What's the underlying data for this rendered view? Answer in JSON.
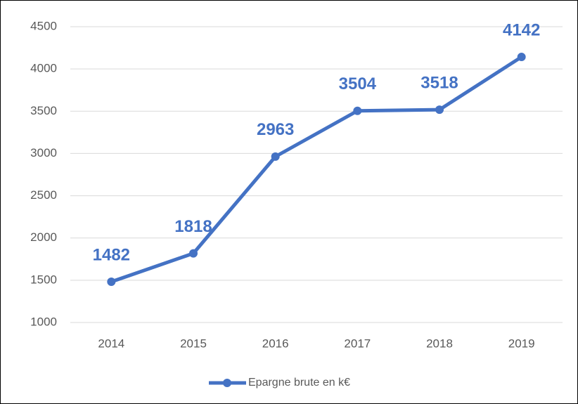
{
  "chart_data": {
    "type": "line",
    "categories": [
      "2014",
      "2015",
      "2016",
      "2017",
      "2018",
      "2019"
    ],
    "series": [
      {
        "name": "Epargne brute en k€",
        "color": "#4472c4",
        "values": [
          1482,
          1818,
          2963,
          3504,
          3518,
          4142
        ]
      }
    ],
    "ylim": [
      1000,
      4500
    ],
    "yticks": [
      1000,
      1500,
      2000,
      2500,
      3000,
      3500,
      4000,
      4500
    ],
    "grid": true,
    "legend": "bottom",
    "data_labels": true
  }
}
